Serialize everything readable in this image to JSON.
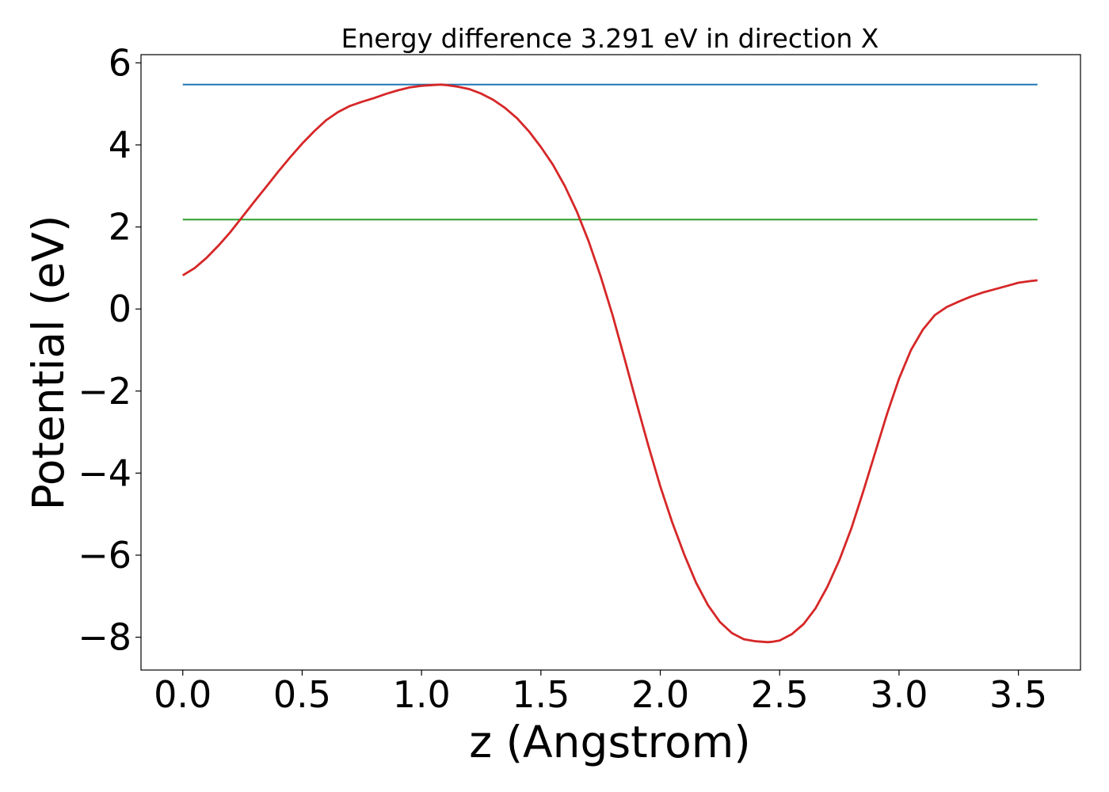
{
  "chart_data": {
    "type": "line",
    "title": "Energy difference 3.291 eV in direction X",
    "xlabel": "z (Angstrom)",
    "ylabel": "Potential (eV)",
    "xlim": [
      -0.175,
      3.76
    ],
    "ylim": [
      -8.8,
      6.2
    ],
    "xticks": [
      0.0,
      0.5,
      1.0,
      1.5,
      2.0,
      2.5,
      3.0,
      3.5
    ],
    "xtick_labels": [
      "0.0",
      "0.5",
      "1.0",
      "1.5",
      "2.0",
      "2.5",
      "3.0",
      "3.5"
    ],
    "yticks": [
      6,
      4,
      2,
      0,
      -2,
      -4,
      -6,
      -8
    ],
    "ytick_labels": [
      "6",
      "4",
      "2",
      "0",
      "−2",
      "−4",
      "−6",
      "−8"
    ],
    "grid": false,
    "legend": "none",
    "series": [
      {
        "color": "#d62728",
        "x": [
          0.0,
          0.05,
          0.1,
          0.15,
          0.2,
          0.25,
          0.3,
          0.35,
          0.4,
          0.45,
          0.5,
          0.55,
          0.6,
          0.65,
          0.7,
          0.75,
          0.8,
          0.85,
          0.9,
          0.95,
          1.0,
          1.05,
          1.08,
          1.1,
          1.15,
          1.2,
          1.25,
          1.3,
          1.35,
          1.4,
          1.45,
          1.5,
          1.55,
          1.6,
          1.65,
          1.7,
          1.75,
          1.8,
          1.85,
          1.9,
          1.95,
          2.0,
          2.05,
          2.1,
          2.15,
          2.2,
          2.25,
          2.3,
          2.35,
          2.4,
          2.45,
          2.47,
          2.5,
          2.55,
          2.6,
          2.65,
          2.7,
          2.75,
          2.8,
          2.85,
          2.9,
          2.95,
          3.0,
          3.05,
          3.1,
          3.15,
          3.2,
          3.25,
          3.3,
          3.35,
          3.4,
          3.45,
          3.5,
          3.55,
          3.58
        ],
        "y": [
          0.82,
          1.0,
          1.25,
          1.55,
          1.88,
          2.25,
          2.62,
          2.98,
          3.35,
          3.7,
          4.03,
          4.33,
          4.6,
          4.8,
          4.95,
          5.05,
          5.14,
          5.24,
          5.33,
          5.4,
          5.44,
          5.46,
          5.47,
          5.46,
          5.42,
          5.36,
          5.25,
          5.1,
          4.9,
          4.65,
          4.33,
          3.95,
          3.52,
          3.0,
          2.38,
          1.65,
          0.8,
          -0.15,
          -1.2,
          -2.28,
          -3.33,
          -4.32,
          -5.2,
          -5.98,
          -6.67,
          -7.22,
          -7.63,
          -7.9,
          -8.05,
          -8.1,
          -8.12,
          -8.11,
          -8.08,
          -7.93,
          -7.68,
          -7.3,
          -6.77,
          -6.12,
          -5.35,
          -4.45,
          -3.5,
          -2.55,
          -1.7,
          -1.0,
          -0.5,
          -0.15,
          0.05,
          0.18,
          0.3,
          0.4,
          0.48,
          0.56,
          0.64,
          0.68,
          0.7
        ]
      },
      {
        "color": "#1f77b4",
        "x": [
          0.0,
          3.58
        ],
        "y": [
          5.47,
          5.47
        ]
      },
      {
        "color": "#2ca02c",
        "x": [
          0.0,
          3.58
        ],
        "y": [
          2.18,
          2.18
        ]
      }
    ]
  }
}
